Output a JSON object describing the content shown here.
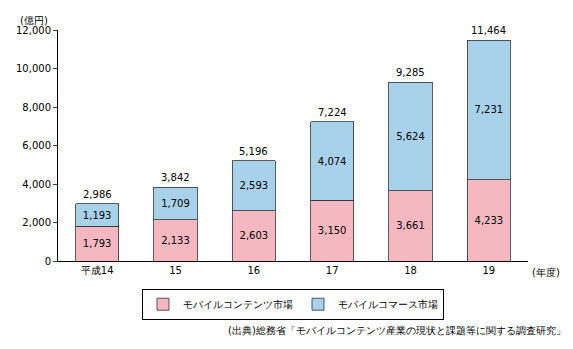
{
  "chart_data": {
    "type": "bar",
    "stacked": true,
    "data_labels": true,
    "grid": false,
    "legend": "bottom",
    "ylabel": "(億円)",
    "xlabel": "(年度)",
    "source": "(出典)総務省「モバイルコンテンツ産業の現状と課題等に関する調査研究」",
    "categories": [
      "平成14",
      "15",
      "16",
      "17",
      "18",
      "19"
    ],
    "series": [
      {
        "name": "モバイルコンテンツ市場",
        "color": "#f6b8c0",
        "values": [
          1793,
          2133,
          2603,
          3150,
          3661,
          4233
        ],
        "value_labels": [
          "1,793",
          "2,133",
          "2,603",
          "3,150",
          "3,661",
          "4,233"
        ]
      },
      {
        "name": "モバイルコマース市場",
        "color": "#a8d2ea",
        "values": [
          1193,
          1709,
          2593,
          4074,
          5624,
          7231
        ],
        "value_labels": [
          "1,193",
          "1,709",
          "2,593",
          "4,074",
          "5,624",
          "7,231"
        ]
      }
    ],
    "total_labels": [
      "2,986",
      "3,842",
      "5,196",
      "7,224",
      "9,285",
      "11,464"
    ],
    "ylim": [
      0,
      12000
    ],
    "yticks": [
      0,
      {
        "value": 2000,
        "label": "2,000"
      },
      {
        "value": 4000,
        "label": "4,000"
      },
      {
        "value": 6000,
        "label": "6,000"
      },
      {
        "value": 8000,
        "label": "8,000"
      },
      {
        "value": 10000,
        "label": "10,000"
      },
      {
        "value": 12000,
        "label": "12,000"
      }
    ]
  }
}
